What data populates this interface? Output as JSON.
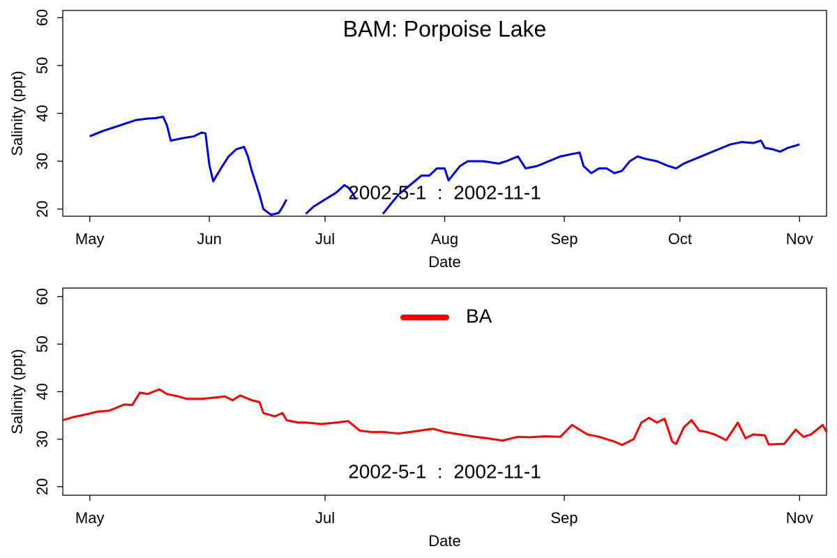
{
  "chart_data": [
    {
      "type": "line",
      "title": "BAM: Porpoise Lake",
      "annotation": "2002-5-1  :  2002-11-1",
      "xlabel": "Date",
      "ylabel": "Salinity (ppt)",
      "x": [
        "2002-05-01",
        "2002-05-04",
        "2002-05-07",
        "2002-05-10",
        "2002-05-13",
        "2002-05-16",
        "2002-05-18",
        "2002-05-20",
        "2002-05-21",
        "2002-05-22",
        "2002-05-25",
        "2002-05-28",
        "2002-05-30",
        "2002-05-31",
        "2002-06-01",
        "2002-06-02",
        "2002-06-04",
        "2002-06-06",
        "2002-06-08",
        "2002-06-10",
        "2002-06-11",
        "2002-06-12",
        "2002-06-14",
        "2002-06-15",
        "2002-06-17",
        "2002-06-19",
        "2002-06-20",
        "2002-06-21",
        "2002-06-22",
        "2002-06-26",
        "2002-06-28",
        "2002-06-30",
        "2002-07-02",
        "2002-07-04",
        "2002-07-06",
        "2002-07-07",
        "2002-07-08",
        "2002-07-09",
        "2002-07-10",
        "2002-07-16",
        "2002-07-18",
        "2002-07-20",
        "2002-07-23",
        "2002-07-26",
        "2002-07-28",
        "2002-07-30",
        "2002-08-01",
        "2002-08-02",
        "2002-08-05",
        "2002-08-07",
        "2002-08-11",
        "2002-08-15",
        "2002-08-17",
        "2002-08-20",
        "2002-08-22",
        "2002-08-25",
        "2002-08-28",
        "2002-08-31",
        "2002-09-03",
        "2002-09-05",
        "2002-09-06",
        "2002-09-08",
        "2002-09-10",
        "2002-09-12",
        "2002-09-14",
        "2002-09-16",
        "2002-09-18",
        "2002-09-20",
        "2002-09-22",
        "2002-09-25",
        "2002-09-28",
        "2002-09-30",
        "2002-10-02",
        "2002-10-05",
        "2002-10-08",
        "2002-10-11",
        "2002-10-14",
        "2002-10-17",
        "2002-10-20",
        "2002-10-22",
        "2002-10-23",
        "2002-10-25",
        "2002-10-27",
        "2002-10-29",
        "2002-11-01"
      ],
      "series": [
        {
          "color": "#0000ee",
          "values": [
            35.2,
            36.2,
            37,
            37.8,
            38.6,
            38.9,
            39,
            39.3,
            37.5,
            34.3,
            34.8,
            35.2,
            36,
            35.8,
            29.2,
            25.8,
            28.5,
            31,
            32.5,
            33,
            31,
            28,
            23,
            20,
            18.8,
            19.2,
            20.5,
            22,
            null,
            19,
            20.5,
            21.5,
            22.5,
            23.5,
            25,
            24.5,
            23.5,
            22,
            null,
            19,
            21,
            23,
            25,
            27,
            27,
            28.5,
            28.5,
            26,
            29,
            30,
            30,
            29.5,
            30,
            31,
            28.5,
            29,
            30,
            31,
            31.5,
            31.8,
            29,
            27.5,
            28.5,
            28.5,
            27.5,
            28,
            30,
            31,
            30.5,
            30,
            29,
            28.5,
            29.5,
            30.5,
            31.5,
            32.5,
            33.5,
            34,
            33.8,
            34.3,
            32.8,
            32.5,
            32,
            32.8,
            33.5
          ]
        }
      ],
      "xlim": [
        "2002-04-24",
        "2002-11-08"
      ],
      "xticks": [
        {
          "value": "2002-05-01",
          "label": "May"
        },
        {
          "value": "2002-06-01",
          "label": "Jun"
        },
        {
          "value": "2002-07-01",
          "label": "Jul"
        },
        {
          "value": "2002-08-01",
          "label": "Aug"
        },
        {
          "value": "2002-09-01",
          "label": "Sep"
        },
        {
          "value": "2002-10-01",
          "label": "Oct"
        },
        {
          "value": "2002-11-01",
          "label": "Nov"
        }
      ],
      "ylim": [
        18.5,
        61.5
      ],
      "yticks": [
        20,
        30,
        40,
        50,
        60
      ]
    },
    {
      "type": "line",
      "annotation": "2002-5-1  :  2002-11-1",
      "xlabel": "Date",
      "ylabel": "Salinity (ppt)",
      "legend": "top",
      "x": [
        "2002-04-24",
        "2002-04-27",
        "2002-04-30",
        "2002-05-03",
        "2002-05-06",
        "2002-05-10",
        "2002-05-12",
        "2002-05-14",
        "2002-05-16",
        "2002-05-19",
        "2002-05-21",
        "2002-05-24",
        "2002-05-26",
        "2002-05-30",
        "2002-06-03",
        "2002-06-05",
        "2002-06-07",
        "2002-06-09",
        "2002-06-12",
        "2002-06-14",
        "2002-06-15",
        "2002-06-18",
        "2002-06-20",
        "2002-06-21",
        "2002-06-24",
        "2002-06-26",
        "2002-06-30",
        "2002-07-04",
        "2002-07-07",
        "2002-07-10",
        "2002-07-13",
        "2002-07-16",
        "2002-07-20",
        "2002-07-23",
        "2002-07-29",
        "2002-08-01",
        "2002-08-05",
        "2002-08-09",
        "2002-08-12",
        "2002-08-16",
        "2002-08-20",
        "2002-08-23",
        "2002-08-27",
        "2002-08-31",
        "2002-09-03",
        "2002-09-05",
        "2002-09-07",
        "2002-09-10",
        "2002-09-14",
        "2002-09-16",
        "2002-09-19",
        "2002-09-21",
        "2002-09-23",
        "2002-09-25",
        "2002-09-27",
        "2002-09-29",
        "2002-09-30",
        "2002-10-02",
        "2002-10-04",
        "2002-10-06",
        "2002-10-08",
        "2002-10-10",
        "2002-10-13",
        "2002-10-16",
        "2002-10-18",
        "2002-10-20",
        "2002-10-23",
        "2002-10-24",
        "2002-10-28",
        "2002-10-31",
        "2002-11-02",
        "2002-11-04",
        "2002-11-07",
        "2002-11-08"
      ],
      "series": [
        {
          "name": "BA",
          "color": "#ff0000",
          "values": [
            34,
            34.7,
            35.2,
            35.8,
            36,
            37.3,
            37.2,
            39.8,
            39.5,
            40.5,
            39.5,
            39,
            38.5,
            38.5,
            38.8,
            39,
            38.2,
            39.2,
            38.2,
            37.8,
            35.5,
            34.8,
            35.5,
            34,
            33.5,
            33.5,
            33.2,
            33.5,
            33.8,
            31.8,
            31.5,
            31.5,
            31.2,
            31.5,
            32.2,
            31.5,
            31,
            30.5,
            30.2,
            29.7,
            30.5,
            30.4,
            30.6,
            30.5,
            33,
            32,
            31,
            30.5,
            29.5,
            28.8,
            30,
            33.5,
            34.5,
            33.5,
            34.3,
            29.5,
            29,
            32.5,
            34,
            31.8,
            31.5,
            31,
            29.8,
            33.5,
            30.2,
            31,
            30.8,
            28.9,
            29,
            32,
            30.5,
            31,
            33,
            31.5
          ]
        }
      ],
      "xlim": [
        "2002-04-24",
        "2002-11-08"
      ],
      "xticks": [
        {
          "value": "2002-05-01",
          "label": "May"
        },
        {
          "value": "2002-07-01",
          "label": "Jul"
        },
        {
          "value": "2002-09-01",
          "label": "Sep"
        },
        {
          "value": "2002-11-01",
          "label": "Nov"
        }
      ],
      "ylim": [
        18.2,
        61.8
      ],
      "yticks": [
        20,
        30,
        40,
        50,
        60
      ]
    }
  ]
}
